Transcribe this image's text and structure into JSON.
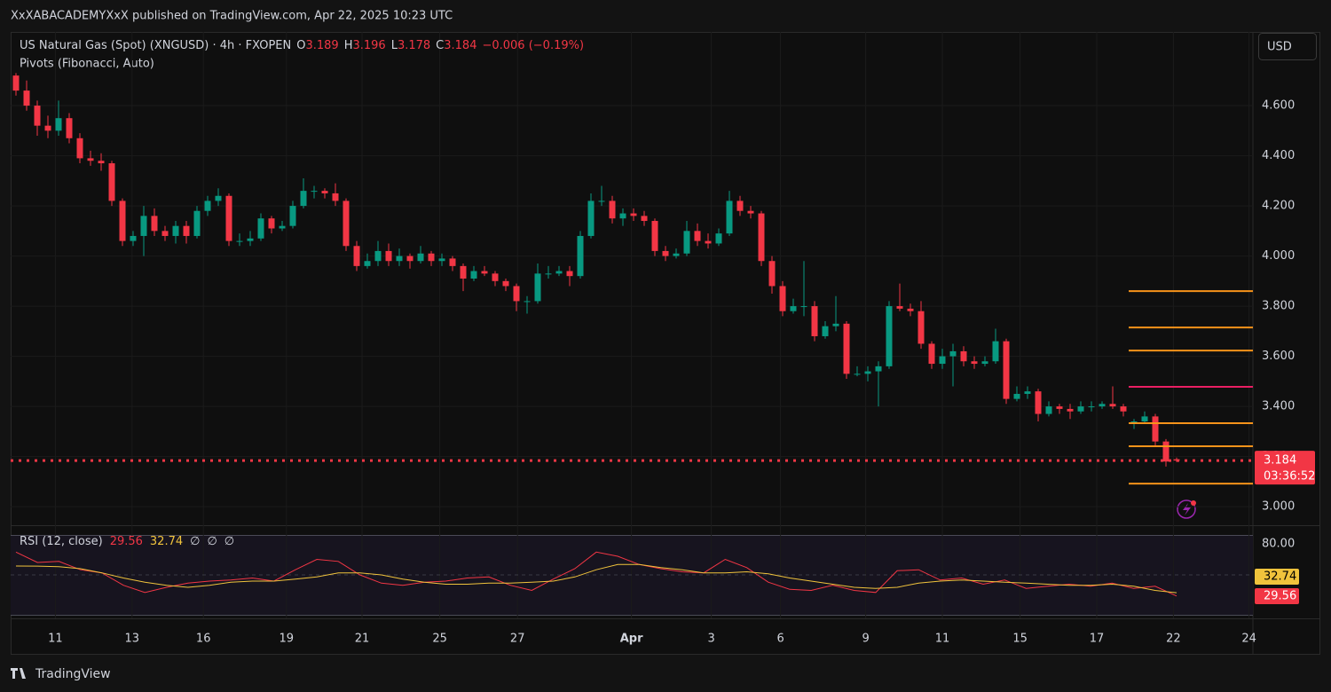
{
  "header": {
    "published": "XxXABACADEMYXxX published on TradingView.com, Apr 22, 2025 10:23 UTC",
    "currency": "USD",
    "countdown": "03:36:52",
    "brand": "TradingView"
  },
  "chart_data": [
    {
      "type": "candlestick",
      "title": "US Natural Gas (Spot) (XNGUSD) · 4h · FXOPEN",
      "ohlc_keys": [
        "O",
        "H",
        "L",
        "C"
      ],
      "change": "−0.006 (−0.19%)",
      "subtitle": "Pivots (Fibonacci, Auto)",
      "up_color": "#089981",
      "down_color": "#f23645",
      "xlim": [
        -0.5,
        116
      ],
      "xticks": [
        {
          "value": 3.7,
          "label": "11"
        },
        {
          "value": 10.9,
          "label": "13"
        },
        {
          "value": 17.6,
          "label": "16"
        },
        {
          "value": 25.4,
          "label": "19"
        },
        {
          "value": 32.5,
          "label": "21"
        },
        {
          "value": 39.8,
          "label": "25"
        },
        {
          "value": 47.1,
          "label": "27"
        },
        {
          "value": 57.8,
          "label": "Apr"
        },
        {
          "value": 65.3,
          "label": "3"
        },
        {
          "value": 71.8,
          "label": "6"
        },
        {
          "value": 79.8,
          "label": "9"
        },
        {
          "value": 87,
          "label": "11"
        },
        {
          "value": 94.3,
          "label": "15"
        },
        {
          "value": 101.5,
          "label": "17"
        },
        {
          "value": 108.7,
          "label": "22"
        },
        {
          "value": 115.8,
          "label": "24"
        }
      ],
      "ylim": [
        2.926,
        4.894
      ],
      "yticks": [
        {
          "value": 3,
          "label": "3.000"
        },
        {
          "value": 3.2,
          "label": "3.200"
        },
        {
          "value": 3.4,
          "label": "3.400"
        },
        {
          "value": 3.6,
          "label": "3.600"
        },
        {
          "value": 3.8,
          "label": "3.800"
        },
        {
          "value": 4,
          "label": "4.000"
        },
        {
          "value": 4.2,
          "label": "4.200"
        },
        {
          "value": 4.4,
          "label": "4.400"
        },
        {
          "value": 4.6,
          "label": "4.600"
        }
      ],
      "grid": true,
      "pivots": [
        {
          "value": 3.86,
          "color": "#f7931a"
        },
        {
          "value": 3.715,
          "color": "#f7931a"
        },
        {
          "value": 3.623,
          "color": "#f7931a"
        },
        {
          "value": 3.478,
          "color": "#e91e63"
        },
        {
          "value": 3.333,
          "color": "#f7931a"
        },
        {
          "value": 3.241,
          "color": "#f7931a"
        },
        {
          "value": 3.092,
          "color": "#f7931a"
        }
      ],
      "ohlc": [
        [
          4.72,
          4.73,
          4.64,
          4.66
        ],
        [
          4.66,
          4.7,
          4.58,
          4.6
        ],
        [
          4.6,
          4.62,
          4.48,
          4.52
        ],
        [
          4.52,
          4.56,
          4.47,
          4.5
        ],
        [
          4.5,
          4.62,
          4.48,
          4.55
        ],
        [
          4.55,
          4.57,
          4.45,
          4.47
        ],
        [
          4.47,
          4.49,
          4.37,
          4.39
        ],
        [
          4.39,
          4.42,
          4.36,
          4.38
        ],
        [
          4.38,
          4.41,
          4.34,
          4.37
        ],
        [
          4.37,
          4.38,
          4.2,
          4.22
        ],
        [
          4.22,
          4.23,
          4.04,
          4.06
        ],
        [
          4.06,
          4.1,
          4.04,
          4.08
        ],
        [
          4.08,
          4.2,
          4.0,
          4.16
        ],
        [
          4.16,
          4.19,
          4.08,
          4.1
        ],
        [
          4.1,
          4.12,
          4.06,
          4.08
        ],
        [
          4.08,
          4.14,
          4.05,
          4.12
        ],
        [
          4.12,
          4.14,
          4.05,
          4.08
        ],
        [
          4.08,
          4.2,
          4.07,
          4.18
        ],
        [
          4.18,
          4.24,
          4.16,
          4.22
        ],
        [
          4.22,
          4.27,
          4.2,
          4.24
        ],
        [
          4.24,
          4.25,
          4.04,
          4.06
        ],
        [
          4.06,
          4.09,
          4.04,
          4.06
        ],
        [
          4.06,
          4.1,
          4.04,
          4.07
        ],
        [
          4.07,
          4.17,
          4.06,
          4.15
        ],
        [
          4.15,
          4.16,
          4.09,
          4.11
        ],
        [
          4.11,
          4.14,
          4.1,
          4.12
        ],
        [
          4.12,
          4.22,
          4.11,
          4.2
        ],
        [
          4.2,
          4.31,
          4.19,
          4.26
        ],
        [
          4.26,
          4.28,
          4.23,
          4.26
        ],
        [
          4.26,
          4.27,
          4.23,
          4.25
        ],
        [
          4.25,
          4.29,
          4.2,
          4.22
        ],
        [
          4.22,
          4.23,
          4.02,
          4.04
        ],
        [
          4.04,
          4.06,
          3.94,
          3.96
        ],
        [
          3.96,
          4.01,
          3.95,
          3.98
        ],
        [
          3.98,
          4.06,
          3.96,
          4.02
        ],
        [
          4.02,
          4.05,
          3.96,
          3.98
        ],
        [
          3.98,
          4.03,
          3.96,
          4.0
        ],
        [
          4.0,
          4.01,
          3.95,
          3.98
        ],
        [
          3.98,
          4.04,
          3.97,
          4.01
        ],
        [
          4.01,
          4.02,
          3.96,
          3.98
        ],
        [
          3.98,
          4.01,
          3.96,
          3.99
        ],
        [
          3.99,
          4.0,
          3.94,
          3.96
        ],
        [
          3.96,
          3.97,
          3.86,
          3.91
        ],
        [
          3.91,
          3.96,
          3.9,
          3.94
        ],
        [
          3.94,
          3.96,
          3.92,
          3.93
        ],
        [
          3.93,
          3.94,
          3.88,
          3.9
        ],
        [
          3.9,
          3.91,
          3.86,
          3.88
        ],
        [
          3.88,
          3.89,
          3.78,
          3.82
        ],
        [
          3.82,
          3.84,
          3.77,
          3.82
        ],
        [
          3.82,
          3.97,
          3.81,
          3.93
        ],
        [
          3.93,
          3.96,
          3.91,
          3.93
        ],
        [
          3.93,
          3.96,
          3.92,
          3.94
        ],
        [
          3.94,
          3.96,
          3.88,
          3.92
        ],
        [
          3.92,
          4.1,
          3.91,
          4.08
        ],
        [
          4.08,
          4.25,
          4.07,
          4.22
        ],
        [
          4.22,
          4.28,
          4.2,
          4.22
        ],
        [
          4.22,
          4.24,
          4.13,
          4.15
        ],
        [
          4.15,
          4.19,
          4.12,
          4.17
        ],
        [
          4.17,
          4.19,
          4.14,
          4.16
        ],
        [
          4.16,
          4.18,
          4.12,
          4.14
        ],
        [
          4.14,
          4.15,
          4.0,
          4.02
        ],
        [
          4.02,
          4.04,
          3.98,
          4.0
        ],
        [
          4.0,
          4.03,
          3.99,
          4.01
        ],
        [
          4.01,
          4.14,
          4.0,
          4.1
        ],
        [
          4.1,
          4.13,
          4.04,
          4.06
        ],
        [
          4.06,
          4.09,
          4.03,
          4.05
        ],
        [
          4.05,
          4.11,
          4.04,
          4.09
        ],
        [
          4.09,
          4.26,
          4.08,
          4.22
        ],
        [
          4.22,
          4.24,
          4.16,
          4.18
        ],
        [
          4.18,
          4.2,
          4.15,
          4.17
        ],
        [
          4.17,
          4.18,
          3.96,
          3.98
        ],
        [
          3.98,
          4.0,
          3.85,
          3.88
        ],
        [
          3.88,
          3.9,
          3.76,
          3.78
        ],
        [
          3.78,
          3.83,
          3.77,
          3.8
        ],
        [
          3.8,
          3.98,
          3.76,
          3.8
        ],
        [
          3.8,
          3.82,
          3.66,
          3.68
        ],
        [
          3.68,
          3.74,
          3.67,
          3.72
        ],
        [
          3.72,
          3.84,
          3.7,
          3.73
        ],
        [
          3.73,
          3.74,
          3.51,
          3.53
        ],
        [
          3.53,
          3.56,
          3.52,
          3.53
        ],
        [
          3.53,
          3.56,
          3.5,
          3.54
        ],
        [
          3.54,
          3.58,
          3.4,
          3.56
        ],
        [
          3.56,
          3.82,
          3.55,
          3.8
        ],
        [
          3.8,
          3.89,
          3.78,
          3.79
        ],
        [
          3.79,
          3.81,
          3.76,
          3.78
        ],
        [
          3.78,
          3.82,
          3.63,
          3.65
        ],
        [
          3.65,
          3.66,
          3.55,
          3.57
        ],
        [
          3.57,
          3.63,
          3.55,
          3.6
        ],
        [
          3.6,
          3.65,
          3.48,
          3.62
        ],
        [
          3.62,
          3.64,
          3.56,
          3.58
        ],
        [
          3.58,
          3.6,
          3.55,
          3.57
        ],
        [
          3.57,
          3.6,
          3.56,
          3.58
        ],
        [
          3.58,
          3.71,
          3.57,
          3.66
        ],
        [
          3.66,
          3.67,
          3.41,
          3.43
        ],
        [
          3.43,
          3.48,
          3.42,
          3.45
        ],
        [
          3.45,
          3.48,
          3.43,
          3.46
        ],
        [
          3.46,
          3.47,
          3.34,
          3.37
        ],
        [
          3.37,
          3.42,
          3.36,
          3.4
        ],
        [
          3.4,
          3.41,
          3.37,
          3.39
        ],
        [
          3.39,
          3.41,
          3.35,
          3.38
        ],
        [
          3.38,
          3.42,
          3.37,
          3.4
        ],
        [
          3.4,
          3.42,
          3.38,
          3.4
        ],
        [
          3.4,
          3.42,
          3.39,
          3.41
        ],
        [
          3.41,
          3.48,
          3.39,
          3.4
        ],
        [
          3.4,
          3.41,
          3.36,
          3.38
        ],
        [
          3.33,
          3.35,
          3.31,
          3.34
        ],
        [
          3.34,
          3.38,
          3.33,
          3.36
        ],
        [
          3.36,
          3.37,
          3.24,
          3.26
        ],
        [
          3.26,
          3.27,
          3.16,
          3.18
        ],
        [
          3.189,
          3.196,
          3.178,
          3.184
        ]
      ]
    },
    {
      "type": "line",
      "title": "RSI (12, close)",
      "placeholders": [
        "∅",
        "∅",
        "∅"
      ],
      "ylim": [
        11.43,
        88.57
      ],
      "yticks": [
        {
          "value": 80,
          "label": "80.00"
        }
      ],
      "midline": 50,
      "series": [
        {
          "color": "#f23645",
          "values": [
            72,
            62,
            63,
            55,
            52,
            40,
            33,
            38,
            42,
            44,
            45,
            47,
            44,
            55,
            65,
            63,
            50,
            42,
            40,
            43,
            44,
            47,
            48,
            40,
            35,
            46,
            56,
            72,
            68,
            60,
            56,
            53,
            52,
            65,
            57,
            43,
            36,
            35,
            40,
            35,
            33,
            54,
            55,
            45,
            47,
            41,
            45,
            37,
            39,
            41,
            39,
            42,
            37,
            39,
            29.56
          ]
        },
        {
          "color": "#f0c33c",
          "values": [
            58.6,
            58.5,
            58,
            56,
            52,
            47,
            43,
            40,
            38,
            40,
            43,
            44,
            44,
            46,
            48,
            52,
            52,
            50,
            46,
            43,
            41,
            41,
            42,
            42,
            43,
            44,
            48,
            55,
            60,
            60,
            57,
            55,
            52,
            52,
            53,
            51,
            47,
            44,
            41,
            38,
            37,
            38,
            42,
            44,
            45,
            44,
            43,
            42,
            41,
            40,
            40,
            41,
            39,
            35,
            32.74
          ]
        }
      ]
    }
  ]
}
